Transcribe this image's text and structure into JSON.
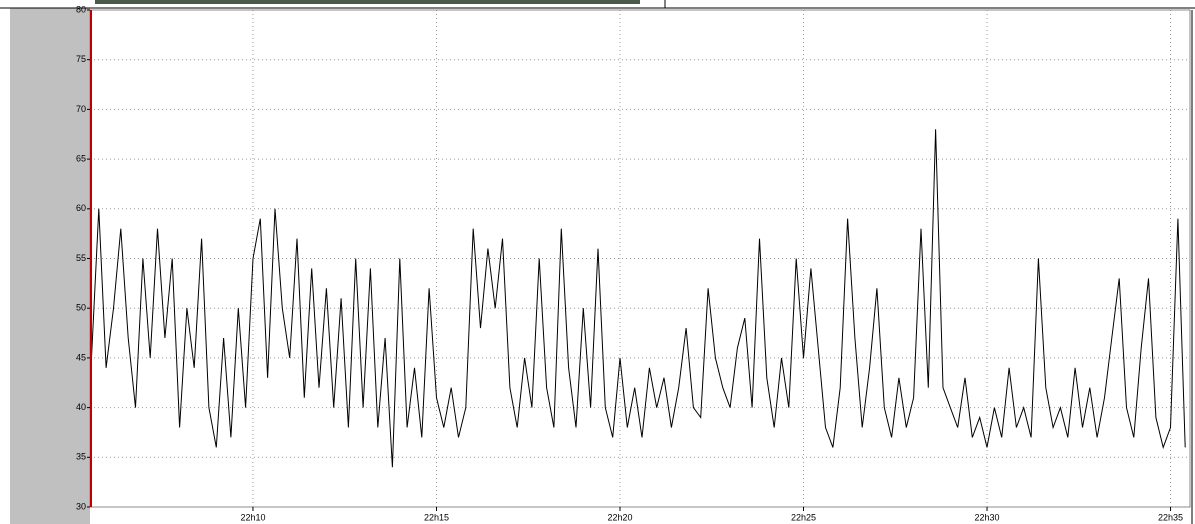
{
  "chart_data": {
    "type": "line",
    "x": [
      5.6,
      5.8,
      6.0,
      6.2,
      6.4,
      6.6,
      6.8,
      7.0,
      7.2,
      7.4,
      7.6,
      7.8,
      8.0,
      8.2,
      8.4,
      8.6,
      8.8,
      9.0,
      9.2,
      9.4,
      9.6,
      9.8,
      10.0,
      10.2,
      10.4,
      10.6,
      10.8,
      11.0,
      11.2,
      11.4,
      11.6,
      11.8,
      12.0,
      12.2,
      12.4,
      12.6,
      12.8,
      13.0,
      13.2,
      13.4,
      13.6,
      13.8,
      14.0,
      14.2,
      14.4,
      14.6,
      14.8,
      15.0,
      15.2,
      15.4,
      15.6,
      15.8,
      16.0,
      16.2,
      16.4,
      16.6,
      16.8,
      17.0,
      17.2,
      17.4,
      17.6,
      17.8,
      18.0,
      18.2,
      18.4,
      18.6,
      18.8,
      19.0,
      19.2,
      19.4,
      19.6,
      19.8,
      20.0,
      20.2,
      20.4,
      20.6,
      20.8,
      21.0,
      21.2,
      21.4,
      21.6,
      21.8,
      22.0,
      22.2,
      22.4,
      22.6,
      22.8,
      23.0,
      23.2,
      23.4,
      23.6,
      23.8,
      24.0,
      24.2,
      24.4,
      24.6,
      24.8,
      25.0,
      25.2,
      25.4,
      25.6,
      25.8,
      26.0,
      26.2,
      26.4,
      26.6,
      26.8,
      27.0,
      27.2,
      27.4,
      27.6,
      27.8,
      28.0,
      28.2,
      28.4,
      28.6,
      28.8,
      29.0,
      29.2,
      29.4,
      29.6,
      29.8,
      30.0,
      30.2,
      30.4,
      30.6,
      30.8,
      31.0,
      31.2,
      31.4,
      31.6,
      31.8,
      32.0,
      32.2,
      32.4,
      32.6,
      32.8,
      33.0,
      33.2,
      33.4,
      33.6,
      33.8,
      34.0,
      34.2,
      34.4,
      34.6,
      34.8,
      35.0,
      35.2,
      35.4
    ],
    "series": [
      {
        "color": "#000000",
        "values": [
          45,
          60,
          44,
          50,
          58,
          47,
          40,
          55,
          45,
          58,
          47,
          55,
          38,
          50,
          44,
          57,
          40,
          36,
          47,
          37,
          50,
          40,
          55,
          59,
          43,
          60,
          50,
          45,
          57,
          41,
          54,
          42,
          52,
          40,
          51,
          38,
          55,
          40,
          54,
          38,
          47,
          34,
          55,
          38,
          44,
          37,
          52,
          41,
          38,
          42,
          37,
          40,
          58,
          48,
          56,
          50,
          57,
          42,
          38,
          45,
          40,
          55,
          42,
          38,
          58,
          44,
          38,
          50,
          40,
          56,
          40,
          37,
          45,
          38,
          42,
          37,
          44,
          40,
          43,
          38,
          42,
          48,
          40,
          39,
          52,
          45,
          42,
          40,
          46,
          49,
          40,
          57,
          43,
          38,
          45,
          40,
          55,
          45,
          54,
          46,
          38,
          36,
          42,
          59,
          47,
          38,
          44,
          52,
          40,
          37,
          43,
          38,
          41,
          58,
          42,
          68,
          42,
          40,
          38,
          43,
          37,
          39,
          36,
          40,
          37,
          44,
          38,
          40,
          37,
          55,
          42,
          38,
          40,
          37,
          44,
          38,
          42,
          37,
          41,
          47,
          53,
          40,
          37,
          46,
          53,
          39,
          36,
          38,
          59,
          36
        ]
      }
    ],
    "xlim": [
      5.56,
      35.53
    ],
    "xticks": [
      {
        "value": 10,
        "label": "22h10"
      },
      {
        "value": 15,
        "label": "22h15"
      },
      {
        "value": 20,
        "label": "22h20"
      },
      {
        "value": 25,
        "label": "22h25"
      },
      {
        "value": 30,
        "label": "22h30"
      },
      {
        "value": 35,
        "label": "22h35"
      }
    ],
    "ylim": [
      30,
      80
    ],
    "yticks": [
      30,
      35,
      40,
      45,
      50,
      55,
      60,
      65,
      70,
      75,
      80
    ],
    "grid": true
  }
}
